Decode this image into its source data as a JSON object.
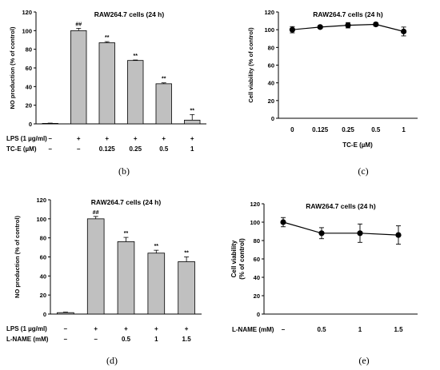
{
  "chart_data": [
    {
      "panel": "b",
      "type": "bar",
      "title": "RAW264.7 cells (24 h)",
      "ylabel": "NO production (% of control)",
      "ylim": [
        0,
        120
      ],
      "yticks": [
        0,
        20,
        40,
        60,
        80,
        100,
        120
      ],
      "row_labels": [
        "LPS (1 µg/ml)",
        "TC-E (µM)"
      ],
      "groups": [
        {
          "row1": "–",
          "row2": "–",
          "value": 0.5,
          "error": 0.3,
          "sig": ""
        },
        {
          "row1": "+",
          "row2": "–",
          "value": 100,
          "error": 2.5,
          "sig": "##"
        },
        {
          "row1": "+",
          "row2": "0.125",
          "value": 87,
          "error": 1.2,
          "sig": "**"
        },
        {
          "row1": "+",
          "row2": "0.25",
          "value": 68,
          "error": 0.5,
          "sig": "**"
        },
        {
          "row1": "+",
          "row2": "0.5",
          "value": 43,
          "error": 1,
          "sig": "**"
        },
        {
          "row1": "+",
          "row2": "1",
          "value": 4,
          "error": 6,
          "sig": "**"
        }
      ],
      "caption": "(b)"
    },
    {
      "panel": "c",
      "type": "line",
      "title": "RAW264.7 cells (24 h)",
      "ylabel": "Cell viability (% of control)",
      "xlabel": "TC-E (µM)",
      "ylim": [
        0,
        120
      ],
      "yticks": [
        0,
        20,
        40,
        60,
        80,
        100,
        120
      ],
      "categories": [
        "0",
        "0.125",
        "0.25",
        "0.5",
        "1"
      ],
      "values": [
        100,
        103,
        105,
        106,
        98
      ],
      "errors": [
        3.5,
        1.5,
        3,
        2,
        5
      ],
      "caption": "(c)"
    },
    {
      "panel": "d",
      "type": "bar",
      "title": "RAW264.7 cells (24 h)",
      "ylabel": "NO production (% of control)",
      "ylim": [
        0,
        120
      ],
      "yticks": [
        0,
        20,
        40,
        60,
        80,
        100,
        120
      ],
      "row_labels": [
        "LPS (1 µg/ml)",
        "L-NAME (mM)"
      ],
      "groups": [
        {
          "row1": "–",
          "row2": "–",
          "value": 1.5,
          "error": 0.5,
          "sig": ""
        },
        {
          "row1": "+",
          "row2": "–",
          "value": 100,
          "error": 2.5,
          "sig": "##"
        },
        {
          "row1": "+",
          "row2": "0.5",
          "value": 76,
          "error": 4.5,
          "sig": "**"
        },
        {
          "row1": "+",
          "row2": "1",
          "value": 64,
          "error": 3,
          "sig": "**"
        },
        {
          "row1": "+",
          "row2": "1.5",
          "value": 55,
          "error": 5,
          "sig": "**"
        }
      ],
      "caption": "(d)"
    },
    {
      "panel": "e",
      "type": "line",
      "title": "RAW264.7 cells (24 h)",
      "ylabel_lines": [
        "Cell viability",
        "(% of control)"
      ],
      "xlabel": "L-NAME (mM)",
      "ylim": [
        0,
        120
      ],
      "yticks": [
        0,
        20,
        40,
        60,
        80,
        100,
        120
      ],
      "categories": [
        "–",
        "0.5",
        "1",
        "1.5"
      ],
      "values": [
        100,
        88,
        88,
        86
      ],
      "errors": [
        5,
        6,
        10,
        10
      ],
      "caption": "(e)"
    }
  ]
}
